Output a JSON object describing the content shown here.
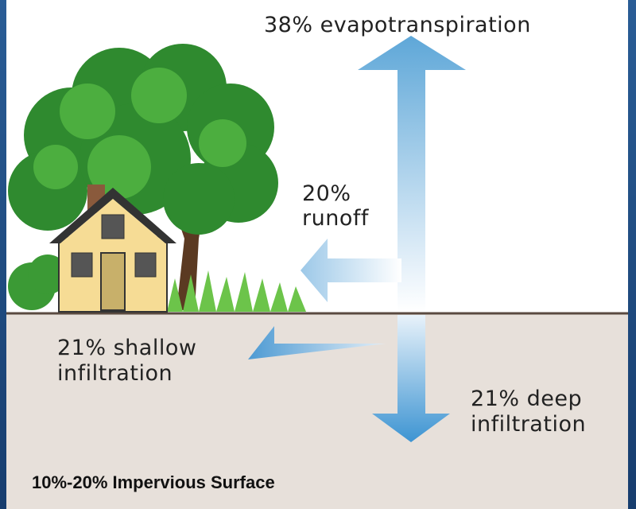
{
  "flows": [
    {
      "lines": [
        "38% evapotranspiration"
      ]
    },
    {
      "lines": [
        "20%",
        "runoff"
      ]
    },
    {
      "lines": [
        "21% shallow",
        "infiltration"
      ]
    },
    {
      "lines": [
        "21% deep",
        "infiltration"
      ]
    }
  ],
  "footer": "10%-20% Impervious Surface"
}
